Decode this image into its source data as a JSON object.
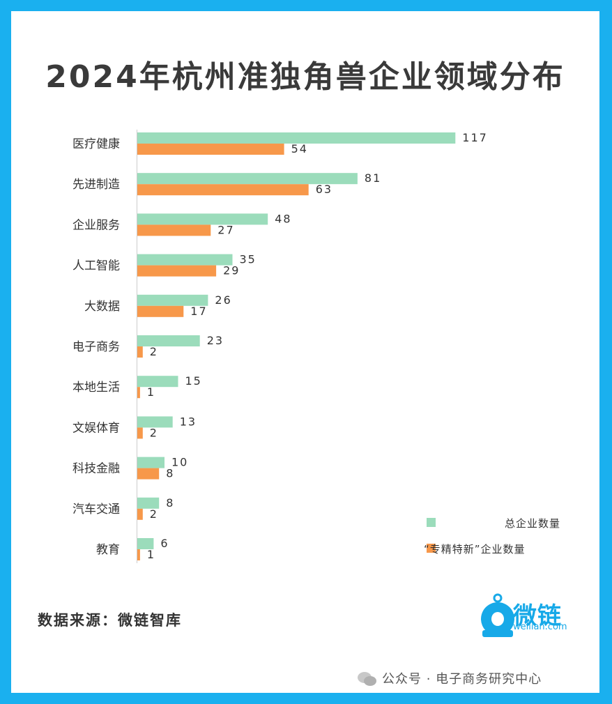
{
  "title": "2024年杭州准独角兽企业领域分布",
  "source_text": "数据来源：微链智库",
  "logo": {
    "name": "微链",
    "domain": "weilian.com",
    "color": "#17a9e8"
  },
  "watermark": {
    "text": "公众号 · 电子商务研究中心",
    "icon": "wechat-icon"
  },
  "colors": {
    "total": "#9bdcbb",
    "special": "#f7984a",
    "frame": "#1ab0ef"
  },
  "chart_data": {
    "type": "bar",
    "orientation": "horizontal",
    "title": "2024年杭州准独角兽企业领域分布",
    "categories": [
      "医疗健康",
      "先进制造",
      "企业服务",
      "人工智能",
      "大数据",
      "电子商务",
      "本地生活",
      "文娱体育",
      "科技金融",
      "汽车交通",
      "教育"
    ],
    "series": [
      {
        "name": "总企业数量",
        "values": [
          117,
          81,
          48,
          35,
          26,
          23,
          15,
          13,
          10,
          8,
          6
        ]
      },
      {
        "name": "“专精特新”企业数量",
        "values": [
          54,
          63,
          27,
          29,
          17,
          2,
          1,
          2,
          8,
          2,
          1
        ]
      }
    ],
    "legend_position": "bottom-right",
    "grid": false,
    "xlim": [
      0,
      130
    ]
  }
}
